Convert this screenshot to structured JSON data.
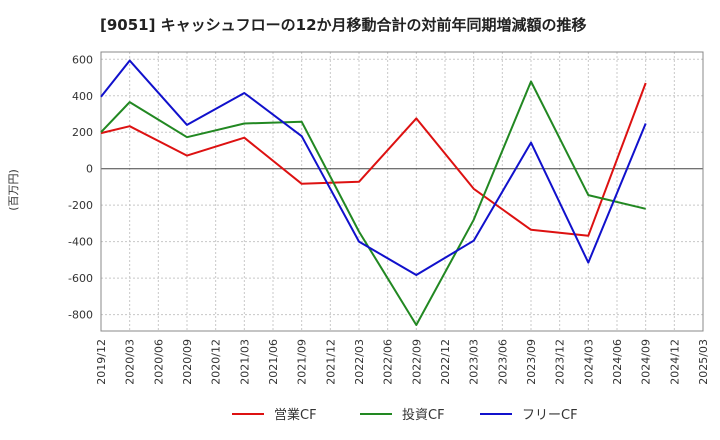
{
  "chart_data": {
    "type": "line",
    "title": "[9051]  キャッシュフローの12か月移動合計の対前年同期増減額の推移",
    "ylabel": "(百万円)",
    "xlabel": "",
    "ylim": [
      -890,
      640
    ],
    "yticks": [
      600,
      400,
      200,
      0,
      -200,
      -400,
      -600,
      -800
    ],
    "x_ticks": [
      "2019/12",
      "2020/03",
      "2020/06",
      "2020/09",
      "2020/12",
      "2021/03",
      "2021/06",
      "2021/09",
      "2021/12",
      "2022/03",
      "2022/06",
      "2022/09",
      "2022/12",
      "2023/03",
      "2023/06",
      "2023/09",
      "2023/12",
      "2024/03",
      "2024/06",
      "2024/09",
      "2024/12",
      "2025/03"
    ],
    "grid": true,
    "legend_position": "bottom",
    "series": [
      {
        "name": "営業CF",
        "color": "#dd1111",
        "points": [
          {
            "x": "2019/12",
            "y": 195
          },
          {
            "x": "2020/03",
            "y": 233
          },
          {
            "x": "2020/09",
            "y": 72
          },
          {
            "x": "2021/03",
            "y": 170
          },
          {
            "x": "2021/09",
            "y": -83
          },
          {
            "x": "2022/03",
            "y": -72
          },
          {
            "x": "2022/09",
            "y": 276
          },
          {
            "x": "2023/03",
            "y": -110
          },
          {
            "x": "2023/09",
            "y": -335
          },
          {
            "x": "2024/03",
            "y": -368
          },
          {
            "x": "2024/09",
            "y": 470
          }
        ]
      },
      {
        "name": "投資CF",
        "color": "#228822",
        "points": [
          {
            "x": "2019/12",
            "y": 200
          },
          {
            "x": "2020/03",
            "y": 365
          },
          {
            "x": "2020/09",
            "y": 173
          },
          {
            "x": "2021/03",
            "y": 248
          },
          {
            "x": "2021/09",
            "y": 257
          },
          {
            "x": "2022/03",
            "y": -345
          },
          {
            "x": "2022/09",
            "y": -857
          },
          {
            "x": "2023/03",
            "y": -280
          },
          {
            "x": "2023/09",
            "y": 478
          },
          {
            "x": "2024/03",
            "y": -145
          },
          {
            "x": "2024/09",
            "y": -220
          }
        ]
      },
      {
        "name": "フリーCF",
        "color": "#1111cc",
        "points": [
          {
            "x": "2019/12",
            "y": 395
          },
          {
            "x": "2020/03",
            "y": 593
          },
          {
            "x": "2020/09",
            "y": 240
          },
          {
            "x": "2021/03",
            "y": 415
          },
          {
            "x": "2021/09",
            "y": 178
          },
          {
            "x": "2022/03",
            "y": -400
          },
          {
            "x": "2022/09",
            "y": -583
          },
          {
            "x": "2023/03",
            "y": -395
          },
          {
            "x": "2023/09",
            "y": 143
          },
          {
            "x": "2024/03",
            "y": -515
          },
          {
            "x": "2024/09",
            "y": 248
          }
        ]
      }
    ]
  }
}
